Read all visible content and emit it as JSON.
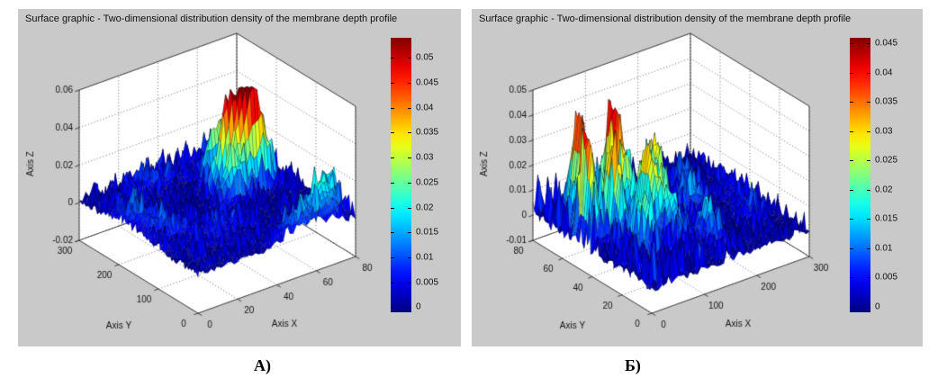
{
  "colors": {
    "panel_bg": "#c9c9c9",
    "plot_walls": "#ffffff",
    "grid": "#6e6e6e",
    "axis": "#333333",
    "text": "#111111",
    "colormap": "jet"
  },
  "chart_data": [
    {
      "type": "surface",
      "caption": "А)",
      "title": "Surface graphic - Two-dimensional distribution density of the membrane depth profile",
      "xlabel": "Axis X",
      "ylabel": "Axis Y",
      "zlabel": "Axis Z",
      "xlim": [
        0,
        80
      ],
      "ylim": [
        0,
        300
      ],
      "zlim": [
        -0.02,
        0.06
      ],
      "xticks": [
        0,
        20,
        40,
        60,
        80
      ],
      "yticks": [
        0,
        100,
        200,
        300
      ],
      "zticks": [
        -0.02,
        0,
        0.02,
        0.04,
        0.06
      ],
      "grid": true,
      "colorbar": {
        "ticks": [
          0,
          0.005,
          0.01,
          0.015,
          0.02,
          0.025,
          0.03,
          0.035,
          0.04,
          0.045,
          0.05
        ],
        "vmin": -0.001,
        "vmax": 0.054,
        "colormap": "jet",
        "position": "right"
      },
      "surface_peaks": [
        {
          "y": 168,
          "x": 57,
          "h": 0.053,
          "sy": 8,
          "sx": 4
        },
        {
          "y": 178,
          "x": 50,
          "h": 0.044,
          "sy": 7,
          "sx": 4
        },
        {
          "y": 157,
          "x": 63,
          "h": 0.036,
          "sy": 7,
          "sx": 5
        },
        {
          "y": 150,
          "x": 48,
          "h": 0.024,
          "sy": 8,
          "sx": 5
        },
        {
          "y": 218,
          "x": 52,
          "h": 0.03,
          "sy": 7,
          "sx": 4
        },
        {
          "y": 195,
          "x": 67,
          "h": 0.024,
          "sy": 8,
          "sx": 5
        },
        {
          "y": 232,
          "x": 62,
          "h": 0.014,
          "sy": 9,
          "sx": 6
        },
        {
          "y": 25,
          "x": 68,
          "h": 0.02,
          "sy": 13,
          "sx": 6
        },
        {
          "y": 52,
          "x": 76,
          "h": 0.018,
          "sy": 9,
          "sx": 5
        },
        {
          "y": 12,
          "x": 52,
          "h": 0.012,
          "sy": 10,
          "sx": 7
        },
        {
          "y": 195,
          "x": 6,
          "h": 0.008,
          "sy": 28,
          "sx": 5
        },
        {
          "y": 135,
          "x": 10,
          "h": 0.007,
          "sy": 22,
          "sx": 7
        },
        {
          "y": 262,
          "x": 30,
          "h": 0.006,
          "sy": 18,
          "sx": 11
        },
        {
          "y": 90,
          "x": 28,
          "h": 0.005,
          "sy": 24,
          "sx": 12
        },
        {
          "y": 285,
          "x": 65,
          "h": 0.006,
          "sy": 12,
          "sx": 9
        }
      ],
      "noise": {
        "amp": 0.0028,
        "decay_x": 0,
        "seed": 7
      }
    },
    {
      "type": "surface",
      "caption": "Б)",
      "title": "Surface graphic - Two-dimensional distribution density of the membrane depth profile",
      "xlabel": "Axis X",
      "ylabel": "Axis Y",
      "zlabel": "Axis Z",
      "xlim": [
        0,
        300
      ],
      "ylim": [
        0,
        80
      ],
      "zlim": [
        -0.01,
        0.05
      ],
      "xticks": [
        0,
        100,
        200,
        300
      ],
      "yticks": [
        0,
        20,
        40,
        60,
        80
      ],
      "zticks": [
        -0.01,
        0,
        0.01,
        0.02,
        0.03,
        0.04,
        0.05
      ],
      "grid": true,
      "colorbar": {
        "ticks": [
          0,
          0.005,
          0.01,
          0.015,
          0.02,
          0.025,
          0.03,
          0.035,
          0.04,
          0.045
        ],
        "vmin": -0.001,
        "vmax": 0.046,
        "colormap": "jet",
        "position": "right"
      },
      "surface_peaks": [
        {
          "y": 50,
          "x": 18,
          "h": 0.04,
          "sy": 5,
          "sx": 7
        },
        {
          "y": 62,
          "x": 38,
          "h": 0.043,
          "sy": 5,
          "sx": 8
        },
        {
          "y": 44,
          "x": 52,
          "h": 0.037,
          "sy": 5,
          "sx": 8
        },
        {
          "y": 56,
          "x": 88,
          "h": 0.045,
          "sy": 6,
          "sx": 9
        },
        {
          "y": 38,
          "x": 100,
          "h": 0.034,
          "sy": 5,
          "sx": 8
        },
        {
          "y": 48,
          "x": 142,
          "h": 0.029,
          "sy": 6,
          "sx": 9
        },
        {
          "y": 26,
          "x": 62,
          "h": 0.022,
          "sy": 5,
          "sx": 8
        },
        {
          "y": 30,
          "x": 118,
          "h": 0.018,
          "sy": 6,
          "sx": 9
        },
        {
          "y": 66,
          "x": 128,
          "h": 0.02,
          "sy": 5,
          "sx": 8
        },
        {
          "y": 18,
          "x": 160,
          "h": 0.013,
          "sy": 6,
          "sx": 11
        },
        {
          "y": 42,
          "x": 195,
          "h": 0.011,
          "sy": 7,
          "sx": 13
        },
        {
          "y": 58,
          "x": 228,
          "h": 0.008,
          "sy": 7,
          "sx": 13
        },
        {
          "y": 24,
          "x": 252,
          "h": 0.006,
          "sy": 7,
          "sx": 13
        },
        {
          "y": 45,
          "x": 280,
          "h": 0.004,
          "sy": 9,
          "sx": 12
        }
      ],
      "noise": {
        "amp": 0.0045,
        "decay_x": 140,
        "seed": 13
      }
    }
  ]
}
